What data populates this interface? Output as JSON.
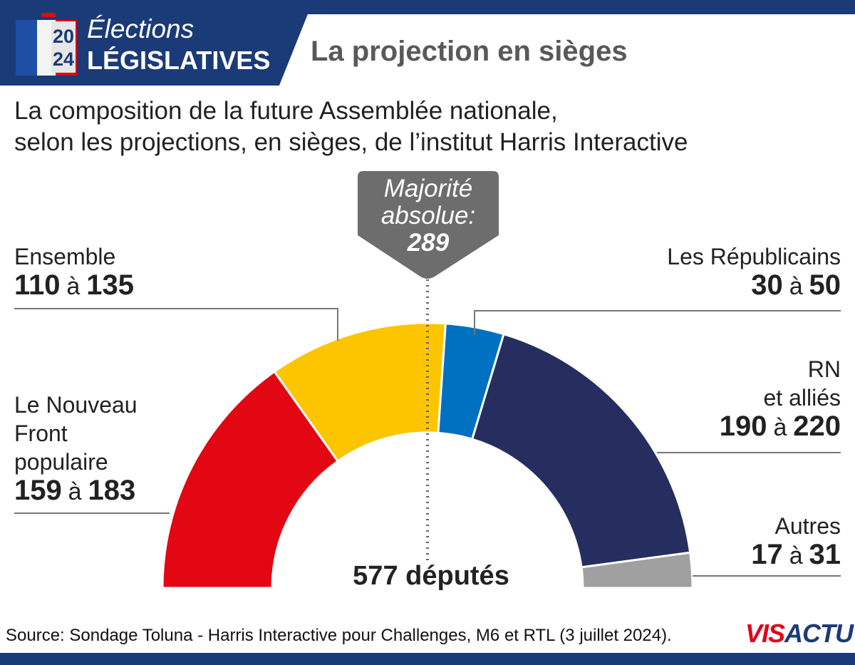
{
  "header": {
    "badge_line1": "Élections",
    "badge_line2": "LÉGISLATIVES",
    "badge_year_top": "20",
    "badge_year_bottom": "24",
    "title": "La projection en sièges"
  },
  "subtitle_line1": "La composition de la future Assemblée nationale,",
  "subtitle_line2": "selon les projections, en sièges, de l’institut Harris Interactive",
  "majority": {
    "line1": "Majorité",
    "line2": "absolue:",
    "value": "289"
  },
  "total_label": "577 députés",
  "range_word": "à",
  "source": "Source: Sondage Toluna - Harris Interactive pour Challenges, M6 et RTL (3 juillet 2024).",
  "logo": {
    "part1": "VIS",
    "part2": "ACTU"
  },
  "colors": {
    "header_blue": "#1b3a78",
    "nfp": "#e30613",
    "ensemble": "#fcc500",
    "lr": "#0070c0",
    "rn": "#252e5e",
    "autres": "#a0a0a0",
    "majority_box": "#6d6d6d"
  },
  "chart_data": {
    "type": "hemicycle",
    "total_seats": 577,
    "majority_threshold": 289,
    "series": [
      {
        "name": "Le Nouveau Front populaire",
        "name_lines": [
          "Le Nouveau",
          "Front",
          "populaire"
        ],
        "min": 159,
        "max": 183,
        "color": "#e30613"
      },
      {
        "name": "Ensemble",
        "name_lines": [
          "Ensemble"
        ],
        "min": 110,
        "max": 135,
        "color": "#fcc500"
      },
      {
        "name": "Les Républicains",
        "name_lines": [
          "Les Républicains"
        ],
        "min": 30,
        "max": 50,
        "color": "#0070c0"
      },
      {
        "name": "RN et alliés",
        "name_lines": [
          "RN",
          "et alliés"
        ],
        "min": 190,
        "max": 220,
        "color": "#252e5e"
      },
      {
        "name": "Autres",
        "name_lines": [
          "Autres"
        ],
        "min": 17,
        "max": 31,
        "color": "#a0a0a0"
      }
    ]
  }
}
